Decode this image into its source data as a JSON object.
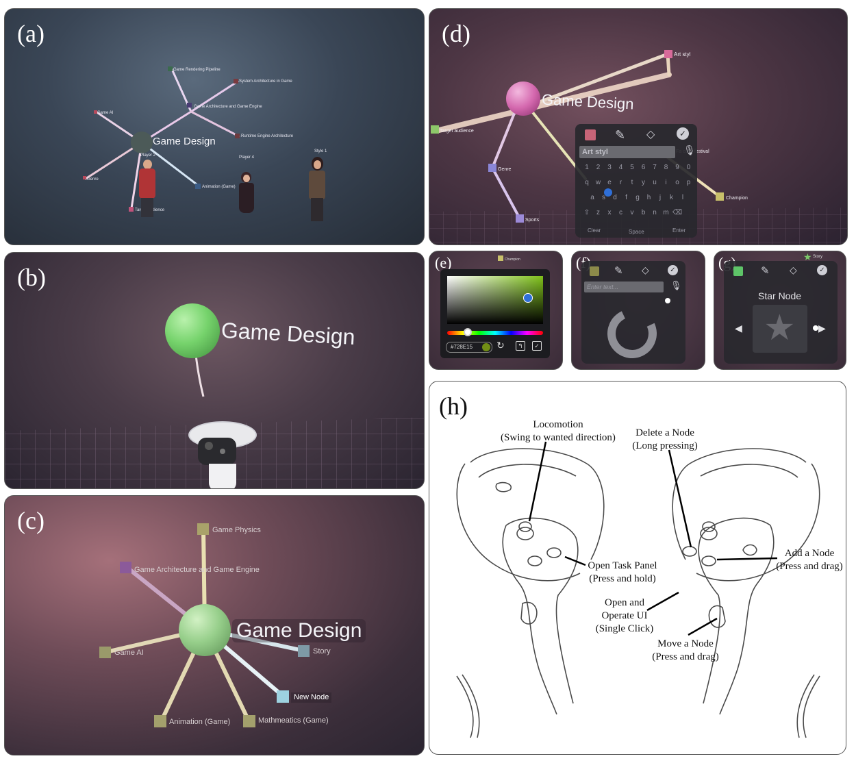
{
  "panel_a": {
    "label": "(a)",
    "title": "Game Design",
    "nodes": [
      "Game Rendering Pipeline",
      "System Architecture in Game",
      "Game Architecture and Game Engine",
      "Runtime Engine Architecture",
      "Game AI",
      "Genre",
      "Animation (Game)",
      "Target Audience"
    ],
    "players": [
      "Player 2",
      "Player 4",
      "Style 1"
    ]
  },
  "panel_b": {
    "label": "(b)",
    "title": "Game Design"
  },
  "panel_c": {
    "label": "(c)",
    "title": "Game Design",
    "nodes": [
      "Game Physics",
      "Game Architecture and Game Engine",
      "Game AI",
      "Story",
      "New Node",
      "Animation (Game)",
      "Mathmeatics (Game)"
    ]
  },
  "panel_d": {
    "label": "(d)",
    "title": "Game Design",
    "nodes": [
      "Art styl",
      "Target audience",
      "Genre",
      "Sports",
      "Champion",
      "Fa ce ie festival"
    ],
    "input_value": "Art styl",
    "keyboard_rows": [
      [
        "1",
        "2",
        "3",
        "4",
        "5",
        "6",
        "7",
        "8",
        "9",
        "0"
      ],
      [
        "q",
        "w",
        "e",
        "r",
        "t",
        "y",
        "u",
        "i",
        "o",
        "p"
      ],
      [
        "a",
        "s",
        "d",
        "f",
        "g",
        "h",
        "j",
        "k",
        "l"
      ],
      [
        "⇧",
        "z",
        "x",
        "c",
        "v",
        "b",
        "n",
        "m",
        "⌫"
      ]
    ],
    "bottom_keys": [
      "Clear",
      "Space",
      "Enter"
    ]
  },
  "panel_e": {
    "label": "(e)",
    "hex_value": "#728E15",
    "node_label": "Champion",
    "swatch_color": "#728E15"
  },
  "panel_f": {
    "label": "(f)",
    "placeholder": "Enter text..."
  },
  "panel_g": {
    "label": "(g)",
    "title": "Star Node",
    "node_label": "Story"
  },
  "panel_h": {
    "label": "(h)",
    "annotations": {
      "locomotion": [
        "Locomotion",
        "(Swing to wanted direction)"
      ],
      "delete_node": [
        "Delete a Node",
        "(Long pressing)"
      ],
      "open_task_panel": [
        "Open Task Panel",
        "(Press and hold)"
      ],
      "add_node": [
        "Add a Node",
        "(Press and drag)"
      ],
      "open_operate_ui": [
        "Open and",
        "Operate UI",
        "(Single Click)"
      ],
      "move_node": [
        "Move a Node",
        "(Press and drag)"
      ]
    }
  }
}
